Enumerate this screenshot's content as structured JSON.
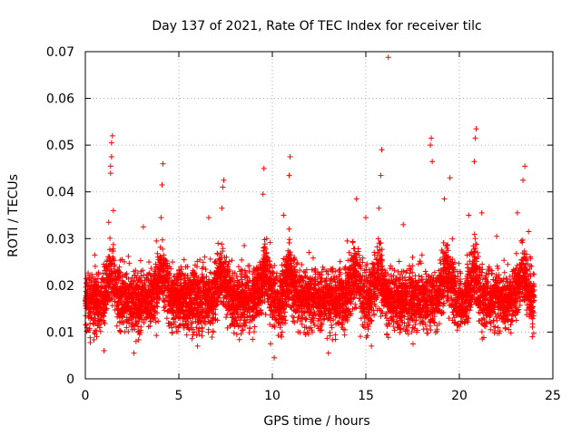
{
  "chart_data": {
    "type": "scatter",
    "title": "Day 137 of 2021, Rate Of TEC Index for receiver tilc",
    "xlabel": "GPS time / hours",
    "ylabel": "ROTI / TECUs",
    "xlim": [
      0,
      25
    ],
    "ylim": [
      0,
      0.07
    ],
    "xticks": [
      "0",
      "5",
      "10",
      "15",
      "20",
      "25"
    ],
    "yticks": [
      "0",
      "0.01",
      "0.02",
      "0.03",
      "0.04",
      "0.05",
      "0.06",
      "0.07"
    ],
    "grid": true,
    "marker": "+",
    "marker_color": "#ff0000",
    "point_count_approx": 6500,
    "background_band": {
      "x_range": [
        0,
        24
      ],
      "typical_low": 0.008,
      "typical_high": 0.028,
      "center": 0.017
    },
    "series": [
      {
        "values": [
          [
            0.05,
            0.0205
          ],
          [
            0.3,
            0.021
          ],
          [
            0.5,
            0.0265
          ],
          [
            0.8,
            0.014
          ],
          [
            1.0,
            0.006
          ],
          [
            1.2,
            0.0205
          ],
          [
            1.25,
            0.0335
          ],
          [
            1.35,
            0.044
          ],
          [
            1.35,
            0.0455
          ],
          [
            1.4,
            0.0475
          ],
          [
            1.4,
            0.0505
          ],
          [
            1.45,
            0.052
          ],
          [
            1.5,
            0.036
          ],
          [
            1.6,
            0.022
          ],
          [
            2.0,
            0.012
          ],
          [
            2.5,
            0.0165
          ],
          [
            2.6,
            0.0055
          ],
          [
            2.9,
            0.0095
          ],
          [
            3.1,
            0.0325
          ],
          [
            3.4,
            0.025
          ],
          [
            3.8,
            0.0295
          ],
          [
            4.05,
            0.0345
          ],
          [
            4.1,
            0.0415
          ],
          [
            4.15,
            0.046
          ],
          [
            4.5,
            0.024
          ],
          [
            5.0,
            0.016
          ],
          [
            5.5,
            0.021
          ],
          [
            6.0,
            0.007
          ],
          [
            6.3,
            0.0215
          ],
          [
            6.6,
            0.0345
          ],
          [
            7.0,
            0.0215
          ],
          [
            7.3,
            0.0365
          ],
          [
            7.35,
            0.041
          ],
          [
            7.4,
            0.0425
          ],
          [
            7.7,
            0.0165
          ],
          [
            8.2,
            0.024
          ],
          [
            8.5,
            0.0285
          ],
          [
            9.0,
            0.0205
          ],
          [
            9.2,
            0.0235
          ],
          [
            9.5,
            0.0395
          ],
          [
            9.55,
            0.045
          ],
          [
            9.7,
            0.03
          ],
          [
            9.9,
            0.0075
          ],
          [
            10.1,
            0.0045
          ],
          [
            10.6,
            0.035
          ],
          [
            10.9,
            0.0435
          ],
          [
            10.95,
            0.0475
          ],
          [
            11.5,
            0.0155
          ],
          [
            12.3,
            0.0235
          ],
          [
            13.0,
            0.0055
          ],
          [
            13.6,
            0.021
          ],
          [
            14.0,
            0.0295
          ],
          [
            14.5,
            0.0385
          ],
          [
            15.0,
            0.0345
          ],
          [
            15.3,
            0.007
          ],
          [
            15.7,
            0.0365
          ],
          [
            15.8,
            0.0435
          ],
          [
            15.85,
            0.049
          ],
          [
            16.2,
            0.0688
          ],
          [
            16.6,
            0.0215
          ],
          [
            17.0,
            0.033
          ],
          [
            17.5,
            0.026
          ],
          [
            18.0,
            0.0265
          ],
          [
            18.45,
            0.05
          ],
          [
            18.5,
            0.0515
          ],
          [
            18.55,
            0.0465
          ],
          [
            19.2,
            0.0385
          ],
          [
            19.5,
            0.043
          ],
          [
            20.5,
            0.035
          ],
          [
            20.8,
            0.0465
          ],
          [
            20.85,
            0.0515
          ],
          [
            20.9,
            0.0535
          ],
          [
            21.2,
            0.0355
          ],
          [
            22.0,
            0.0305
          ],
          [
            22.5,
            0.0215
          ],
          [
            23.1,
            0.0355
          ],
          [
            23.4,
            0.0425
          ],
          [
            23.5,
            0.0455
          ],
          [
            23.7,
            0.0315
          ],
          [
            23.9,
            0.009
          ]
        ]
      }
    ]
  }
}
